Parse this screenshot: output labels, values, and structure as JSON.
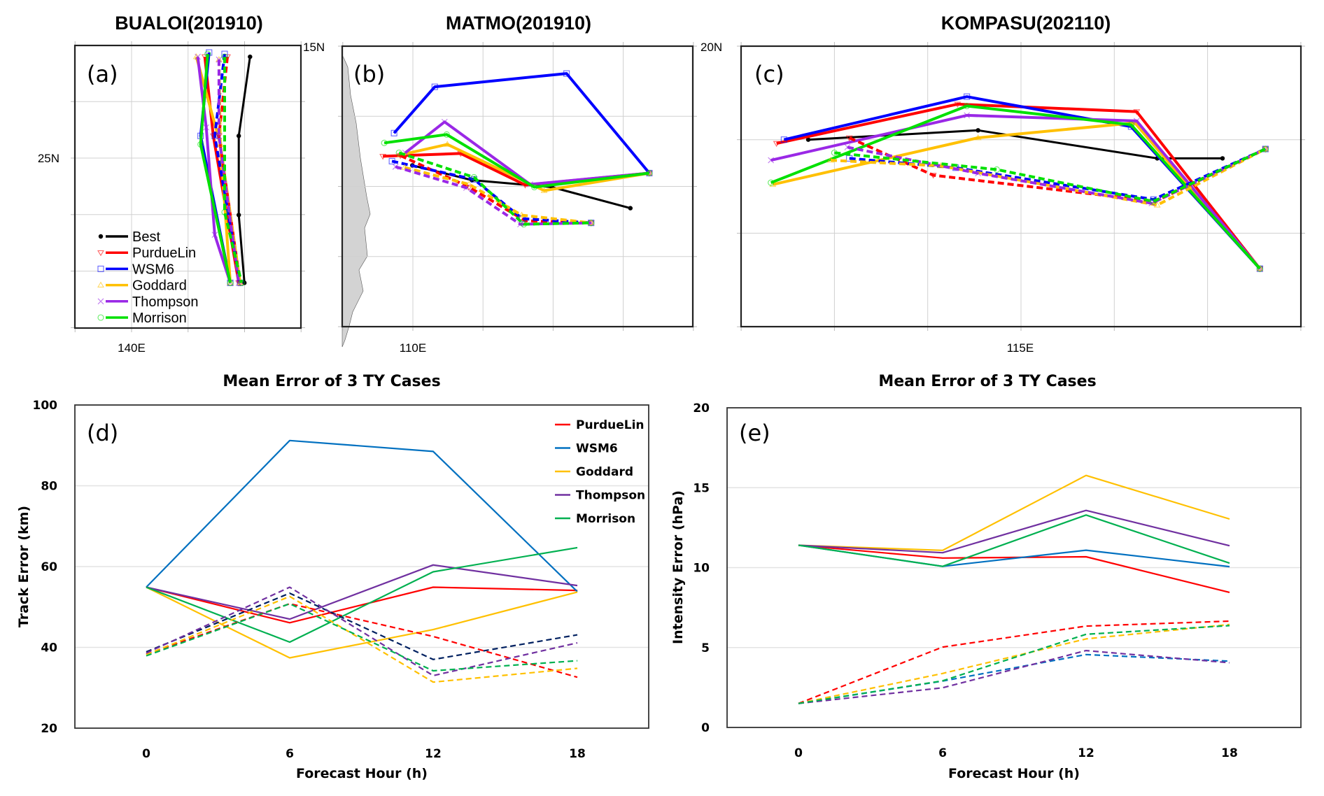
{
  "chart_data": [
    {
      "type": "line",
      "panel": "(a)",
      "title": "BUALOI(201910)",
      "kind": "track-map",
      "xlabel": "",
      "ylabel": "",
      "xlim": [
        138,
        146
      ],
      "ylim": [
        19,
        29
      ],
      "x_tick_labels": [
        {
          "value": 140,
          "label": "140E"
        }
      ],
      "y_tick_labels": [
        {
          "value": 25,
          "label": "25N"
        }
      ],
      "grid": true,
      "legend": "bottom-left",
      "series": [
        {
          "name": "Best",
          "style": "solid",
          "color": "#000000",
          "marker": "dot",
          "lon": [
            144.2,
            143.8,
            143.8,
            144.0
          ],
          "lat": [
            28.6,
            25.8,
            23.0,
            20.6
          ]
        },
        {
          "name": "PurdueLin",
          "style": "solid",
          "color": "#ff0000",
          "marker": "triangle-down",
          "lon": [
            142.6,
            142.9,
            143.8
          ],
          "lat": [
            28.6,
            25.8,
            20.6
          ]
        },
        {
          "name": "WSM6",
          "style": "solid",
          "color": "#0000ff",
          "marker": "square",
          "lon": [
            142.75,
            142.45,
            143.5
          ],
          "lat": [
            28.75,
            25.8,
            20.6
          ]
        },
        {
          "name": "Goddard",
          "style": "solid",
          "color": "#ffc000",
          "marker": "triangle-up",
          "lon": [
            142.3,
            143.15,
            143.5
          ],
          "lat": [
            28.6,
            25.5,
            20.6
          ]
        },
        {
          "name": "Thompson",
          "style": "solid",
          "color": "#9a28e6",
          "marker": "x",
          "lon": [
            142.35,
            142.65,
            142.95,
            143.5
          ],
          "lat": [
            28.6,
            26.1,
            22.3,
            20.6
          ]
        },
        {
          "name": "Morrison",
          "style": "solid",
          "color": "#00e000",
          "marker": "circle",
          "lon": [
            142.7,
            142.45,
            143.5
          ],
          "lat": [
            28.7,
            25.5,
            20.6
          ]
        },
        {
          "name": "PurdueLin",
          "style": "dashed",
          "color": "#ff0000",
          "marker": "triangle-down",
          "lon": [
            143.4,
            143.1,
            143.85
          ],
          "lat": [
            28.6,
            25.8,
            20.6
          ]
        },
        {
          "name": "WSM6",
          "style": "dashed",
          "color": "#0000ff",
          "marker": "square",
          "lon": [
            143.3,
            142.95,
            143.85
          ],
          "lat": [
            28.7,
            25.8,
            20.6
          ]
        },
        {
          "name": "Goddard",
          "style": "dashed",
          "color": "#ffc000",
          "marker": "triangle-up",
          "lon": [
            143.1,
            143.15,
            143.85
          ],
          "lat": [
            28.5,
            25.5,
            20.6
          ]
        },
        {
          "name": "Thompson",
          "style": "dashed",
          "color": "#9a28e6",
          "marker": "x",
          "lon": [
            143.1,
            143.1,
            143.8
          ],
          "lat": [
            28.5,
            25.8,
            20.6
          ]
        },
        {
          "name": "Morrison",
          "style": "dashed",
          "color": "#00e000",
          "marker": "circle",
          "lon": [
            143.3,
            143.3,
            143.9
          ],
          "lat": [
            28.6,
            23.1,
            20.6
          ]
        }
      ]
    },
    {
      "type": "line",
      "panel": "(b)",
      "title": "MATMO(201910)",
      "kind": "track-map",
      "xlabel": "",
      "ylabel": "",
      "xlim": [
        109,
        114
      ],
      "ylim": [
        11,
        15
      ],
      "x_tick_labels": [
        {
          "value": 110,
          "label": "110E"
        }
      ],
      "y_tick_labels": [
        {
          "value": 15,
          "label": "15N"
        }
      ],
      "grid": true,
      "series": [
        {
          "name": "Best",
          "style": "solid",
          "color": "#000000",
          "marker": "dot",
          "lon": [
            110.0,
            110.85,
            111.99,
            113.11
          ],
          "lat": [
            13.3,
            13.09,
            12.99,
            12.69
          ]
        },
        {
          "name": "PurdueLin",
          "style": "solid",
          "color": "#ff0000",
          "marker": "triangle-down",
          "lon": [
            109.58,
            110.69,
            111.61,
            113.38
          ],
          "lat": [
            13.43,
            13.47,
            13.02,
            13.19
          ]
        },
        {
          "name": "WSM6",
          "style": "solid",
          "color": "#0000ff",
          "marker": "square",
          "lon": [
            109.74,
            110.32,
            112.2,
            113.38
          ],
          "lat": [
            13.76,
            14.42,
            14.61,
            13.19
          ]
        },
        {
          "name": "Goddard",
          "style": "solid",
          "color": "#ffc000",
          "marker": "triangle-up",
          "lon": [
            109.83,
            110.5,
            111.88,
            113.38
          ],
          "lat": [
            13.45,
            13.6,
            12.94,
            13.19
          ]
        },
        {
          "name": "Thompson",
          "style": "solid",
          "color": "#9a28e6",
          "marker": "x",
          "lon": [
            109.9,
            110.46,
            111.68,
            113.38
          ],
          "lat": [
            13.48,
            13.92,
            13.03,
            13.19
          ]
        },
        {
          "name": "Morrison",
          "style": "solid",
          "color": "#00e000",
          "marker": "circle",
          "lon": [
            109.6,
            110.49,
            111.74,
            113.38
          ],
          "lat": [
            13.62,
            13.74,
            12.99,
            13.19
          ]
        },
        {
          "name": "PurdueLin",
          "style": "dashed",
          "color": "#ff0000",
          "marker": "triangle-down",
          "lon": [
            109.83,
            110.81,
            111.61,
            112.55
          ],
          "lat": [
            13.44,
            12.99,
            12.51,
            12.48
          ]
        },
        {
          "name": "WSM6",
          "style": "dashed",
          "color": "#0000ff",
          "marker": "square",
          "lon": [
            109.71,
            110.88,
            111.57,
            112.55
          ],
          "lat": [
            13.36,
            13.1,
            12.54,
            12.48
          ]
        },
        {
          "name": "Goddard",
          "style": "dashed",
          "color": "#ffc000",
          "marker": "triangle-up",
          "lon": [
            109.89,
            110.81,
            111.56,
            112.55
          ],
          "lat": [
            13.27,
            13.03,
            12.59,
            12.48
          ]
        },
        {
          "name": "Thompson",
          "style": "dashed",
          "color": "#9a28e6",
          "marker": "x",
          "lon": [
            109.76,
            110.77,
            111.54,
            112.55
          ],
          "lat": [
            13.28,
            12.98,
            12.46,
            12.48
          ]
        },
        {
          "name": "Morrison",
          "style": "dashed",
          "color": "#00e000",
          "marker": "circle",
          "lon": [
            109.81,
            110.88,
            111.59,
            112.55
          ],
          "lat": [
            13.48,
            13.13,
            12.46,
            12.48
          ]
        }
      ]
    },
    {
      "type": "line",
      "panel": "(c)",
      "title": "KOMPASU(202110)",
      "kind": "track-map",
      "xlabel": "",
      "ylabel": "",
      "xlim": [
        113.5,
        116.5
      ],
      "ylim": [
        18.5,
        20
      ],
      "x_tick_labels": [
        {
          "value": 115,
          "label": "115E"
        }
      ],
      "y_tick_labels": [
        {
          "value": 20,
          "label": "20N"
        }
      ],
      "grid": true,
      "series": [
        {
          "name": "Best",
          "style": "solid",
          "color": "#000000",
          "marker": "dot",
          "lon": [
            113.86,
            114.77,
            115.73,
            116.08
          ],
          "lat": [
            19.5,
            19.55,
            19.4,
            19.4
          ]
        },
        {
          "name": "PurdueLin",
          "style": "solid",
          "color": "#ff0000",
          "marker": "triangle-down",
          "lon": [
            113.69,
            114.66,
            115.62,
            116.28
          ],
          "lat": [
            19.48,
            19.69,
            19.65,
            18.81
          ]
        },
        {
          "name": "WSM6",
          "style": "solid",
          "color": "#0000ff",
          "marker": "square",
          "lon": [
            113.73,
            114.71,
            115.59,
            116.28
          ],
          "lat": [
            19.5,
            19.73,
            19.57,
            18.81
          ]
        },
        {
          "name": "Goddard",
          "style": "solid",
          "color": "#ffc000",
          "marker": "triangle-up",
          "lon": [
            113.67,
            114.77,
            115.61,
            116.28
          ],
          "lat": [
            19.26,
            19.51,
            19.59,
            18.81
          ]
        },
        {
          "name": "Thompson",
          "style": "solid",
          "color": "#9a28e6",
          "marker": "x",
          "lon": [
            113.66,
            114.71,
            115.62,
            116.28
          ],
          "lat": [
            19.39,
            19.63,
            19.6,
            18.81
          ]
        },
        {
          "name": "Morrison",
          "style": "solid",
          "color": "#00e000",
          "marker": "circle",
          "lon": [
            113.66,
            114.71,
            115.59,
            116.28
          ],
          "lat": [
            19.27,
            19.68,
            19.58,
            18.81
          ]
        },
        {
          "name": "PurdueLin",
          "style": "dashed",
          "color": "#ff0000",
          "marker": "triangle-down",
          "lon": [
            114.08,
            114.53,
            115.72,
            116.31
          ],
          "lat": [
            19.51,
            19.31,
            19.17,
            19.45
          ]
        },
        {
          "name": "WSM6",
          "style": "dashed",
          "color": "#0000ff",
          "marker": "square",
          "lon": [
            114.08,
            114.65,
            115.71,
            116.31
          ],
          "lat": [
            19.4,
            19.35,
            19.18,
            19.45
          ]
        },
        {
          "name": "Goddard",
          "style": "dashed",
          "color": "#ffc000",
          "marker": "triangle-up",
          "lon": [
            113.98,
            114.57,
            115.73,
            116.31
          ],
          "lat": [
            19.39,
            19.36,
            19.15,
            19.45
          ]
        },
        {
          "name": "Thompson",
          "style": "dashed",
          "color": "#9a28e6",
          "marker": "x",
          "lon": [
            114.07,
            114.77,
            115.7,
            116.31
          ],
          "lat": [
            19.46,
            19.32,
            19.16,
            19.45
          ]
        },
        {
          "name": "Morrison",
          "style": "dashed",
          "color": "#00e000",
          "marker": "circle",
          "lon": [
            114.0,
            114.87,
            115.71,
            116.31
          ],
          "lat": [
            19.43,
            19.34,
            19.17,
            19.45
          ]
        }
      ]
    },
    {
      "type": "line",
      "panel": "(d)",
      "title": "Mean Error of 3 TY Cases",
      "xlabel": "Forecast Hour (h)",
      "ylabel": "Track Error (km)",
      "categories": [
        0,
        6,
        12,
        18
      ],
      "x_tick_labels": [
        "0",
        "6",
        "12",
        "18"
      ],
      "ylim": [
        20,
        100
      ],
      "y_ticks": [
        20,
        40,
        60,
        80,
        100
      ],
      "grid": true,
      "legend": "top-right",
      "series": [
        {
          "name": "PurdueLin",
          "style": "solid",
          "color": "#ff0000",
          "values": [
            54.9,
            46.1,
            54.9,
            54.1
          ]
        },
        {
          "name": "WSM6",
          "style": "solid",
          "color": "#0070c0",
          "values": [
            54.9,
            91.2,
            88.5,
            53.8
          ]
        },
        {
          "name": "Goddard",
          "style": "solid",
          "color": "#ffc000",
          "values": [
            54.9,
            37.4,
            44.4,
            53.7
          ]
        },
        {
          "name": "Thompson",
          "style": "solid",
          "color": "#7030a0",
          "values": [
            54.9,
            47.0,
            60.4,
            55.3
          ]
        },
        {
          "name": "Morrison",
          "style": "solid",
          "color": "#00b050",
          "values": [
            54.9,
            41.3,
            58.7,
            64.7
          ]
        },
        {
          "name": "PurdueLin (dashed)",
          "style": "dashed",
          "color": "#ff0000",
          "values": [
            38.3,
            50.8,
            42.7,
            32.6
          ]
        },
        {
          "name": "WSM6 (dashed)",
          "style": "dashed",
          "color": "#002060",
          "values": [
            38.9,
            53.4,
            37.0,
            43.1
          ]
        },
        {
          "name": "Goddard (dashed)",
          "style": "dashed",
          "color": "#ffc000",
          "values": [
            38.2,
            52.6,
            31.4,
            34.8
          ]
        },
        {
          "name": "Thompson (dashed)",
          "style": "dashed",
          "color": "#7030a0",
          "values": [
            38.6,
            54.9,
            33.0,
            41.1
          ]
        },
        {
          "name": "Morrison (dashed)",
          "style": "dashed",
          "color": "#00b050",
          "values": [
            37.9,
            50.8,
            34.2,
            36.7
          ]
        }
      ]
    },
    {
      "type": "line",
      "panel": "(e)",
      "title": "Mean Error of 3 TY Cases",
      "xlabel": "Forecast Hour (h)",
      "ylabel": "Intensity Error (hPa)",
      "categories": [
        0,
        6,
        12,
        18
      ],
      "x_tick_labels": [
        "0",
        "6",
        "12",
        "18"
      ],
      "ylim": [
        0,
        20
      ],
      "y_ticks": [
        0,
        5,
        10,
        15,
        20
      ],
      "grid": true,
      "series": [
        {
          "name": "PurdueLin",
          "style": "solid",
          "color": "#ff0000",
          "values": [
            11.4,
            10.6,
            10.68,
            8.45
          ]
        },
        {
          "name": "WSM6",
          "style": "solid",
          "color": "#0070c0",
          "values": [
            11.4,
            10.08,
            11.09,
            10.06
          ]
        },
        {
          "name": "Goddard",
          "style": "solid",
          "color": "#ffc000",
          "values": [
            11.4,
            11.08,
            15.77,
            13.04
          ]
        },
        {
          "name": "Thompson",
          "style": "solid",
          "color": "#7030a0",
          "values": [
            11.4,
            10.93,
            13.58,
            11.37
          ]
        },
        {
          "name": "Morrison",
          "style": "solid",
          "color": "#00b050",
          "values": [
            11.4,
            10.08,
            13.29,
            10.28
          ]
        },
        {
          "name": "PurdueLin (dashed)",
          "style": "dashed",
          "color": "#ff0000",
          "values": [
            1.5,
            5.03,
            6.34,
            6.65
          ]
        },
        {
          "name": "WSM6 (dashed)",
          "style": "dashed",
          "color": "#0070c0",
          "values": [
            1.5,
            2.9,
            4.56,
            4.15
          ]
        },
        {
          "name": "Goddard (dashed)",
          "style": "dashed",
          "color": "#ffc000",
          "values": [
            1.5,
            3.38,
            5.54,
            6.44
          ]
        },
        {
          "name": "Thompson (dashed)",
          "style": "dashed",
          "color": "#7030a0",
          "values": [
            1.5,
            2.48,
            4.81,
            4.05
          ]
        },
        {
          "name": "Morrison (dashed)",
          "style": "dashed",
          "color": "#00b050",
          "values": [
            1.5,
            2.92,
            5.83,
            6.37
          ]
        }
      ]
    }
  ],
  "map_legend": {
    "items": [
      {
        "label": "Best",
        "color": "#000000",
        "marker": "dot"
      },
      {
        "label": "PurdueLin",
        "color": "#ff0000",
        "marker": "triangle-down"
      },
      {
        "label": "WSM6",
        "color": "#0000ff",
        "marker": "square"
      },
      {
        "label": "Goddard",
        "color": "#ffc000",
        "marker": "triangle-up"
      },
      {
        "label": "Thompson",
        "color": "#9a28e6",
        "marker": "x"
      },
      {
        "label": "Morrison",
        "color": "#00e000",
        "marker": "circle"
      }
    ]
  },
  "chart_legend": {
    "items": [
      {
        "label": "PurdueLin",
        "color": "#ff0000"
      },
      {
        "label": "WSM6",
        "color": "#0070c0"
      },
      {
        "label": "Goddard",
        "color": "#ffc000"
      },
      {
        "label": "Thompson",
        "color": "#7030a0"
      },
      {
        "label": "Morrison",
        "color": "#00b050"
      }
    ]
  }
}
